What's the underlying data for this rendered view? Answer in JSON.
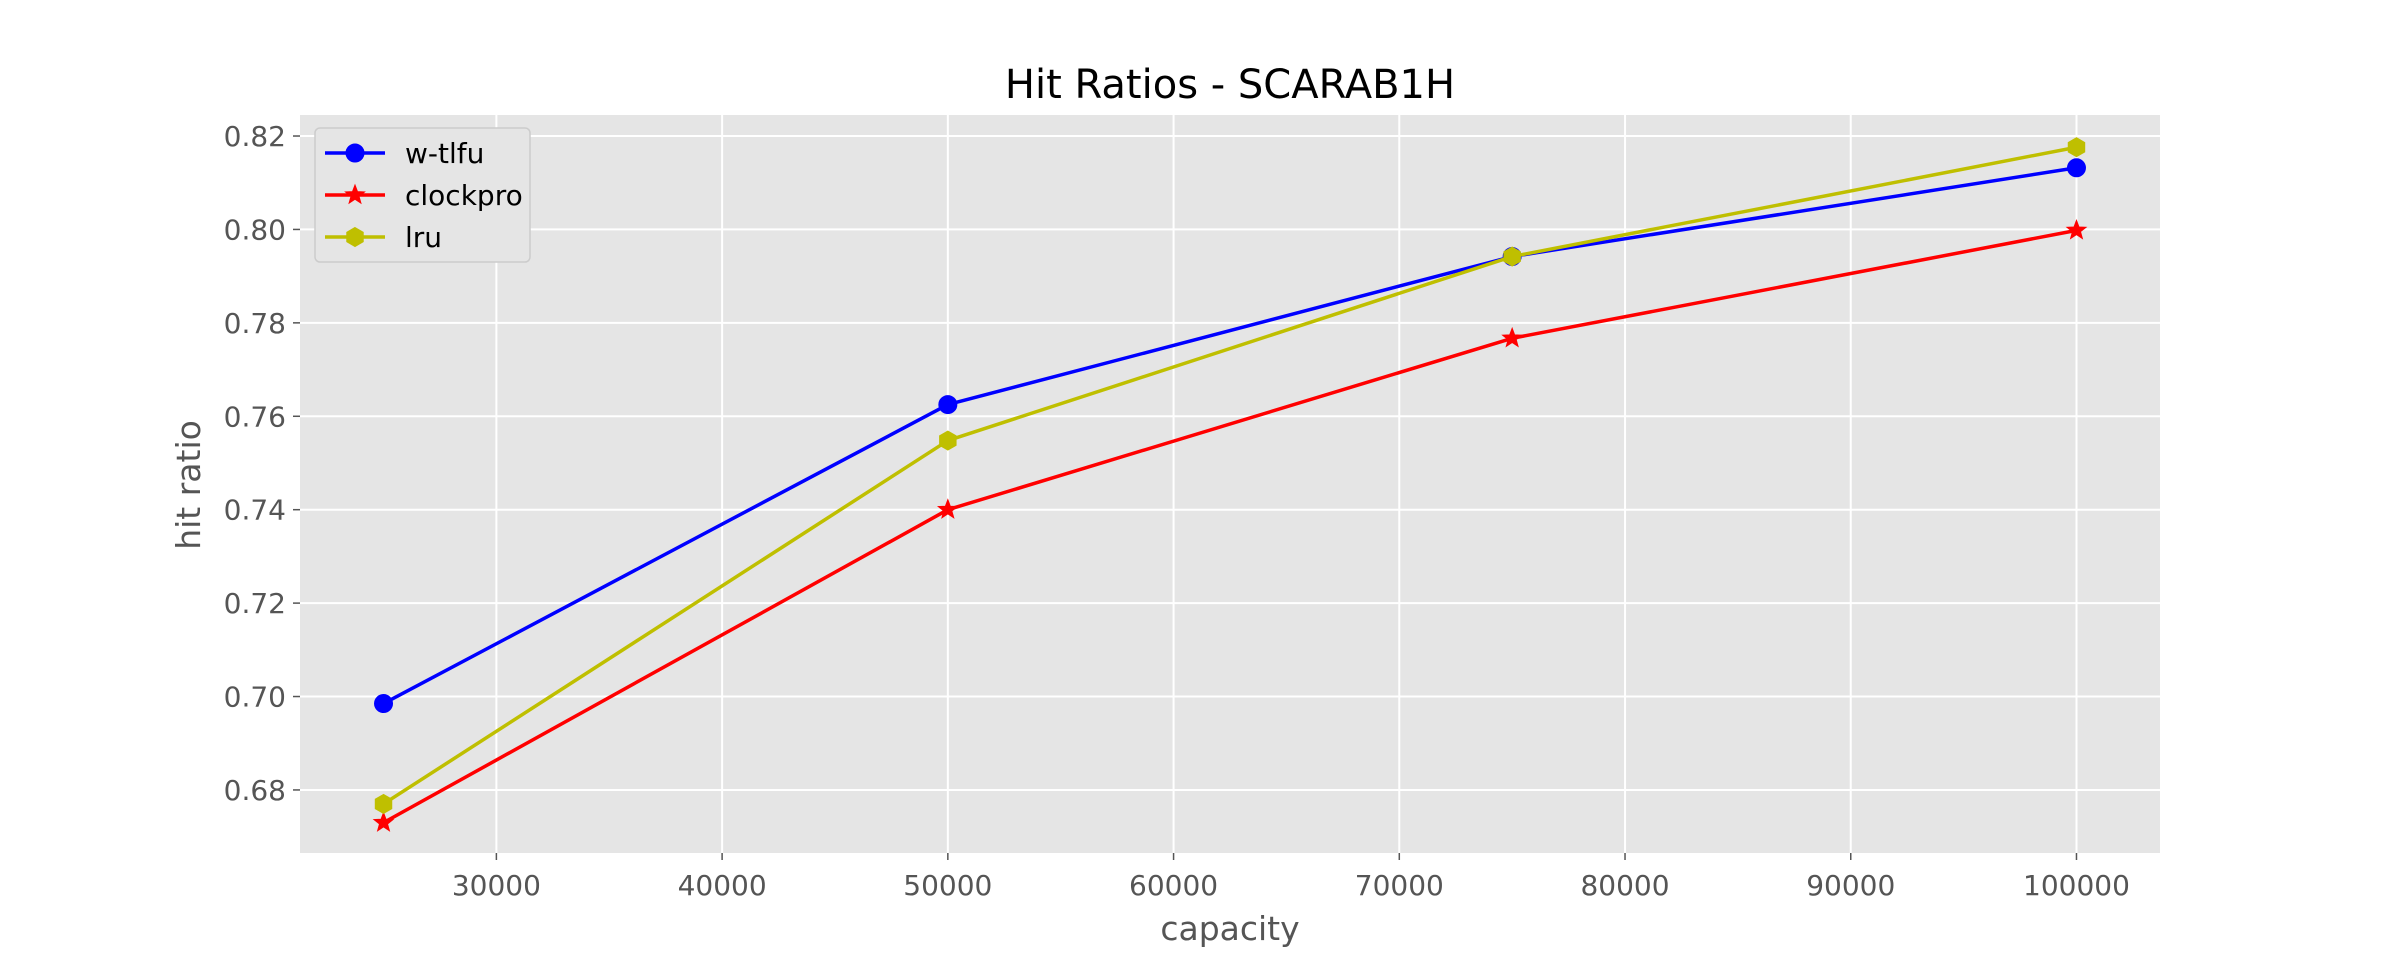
{
  "chart_data": {
    "type": "line",
    "title": "Hit Ratios - SCARAB1H",
    "xlabel": "capacity",
    "ylabel": "hit ratio",
    "x": [
      25000,
      50000,
      75000,
      100000
    ],
    "xlim": [
      21300,
      103700
    ],
    "ylim": [
      0.6665,
      0.8245
    ],
    "xticks": [
      30000,
      40000,
      50000,
      60000,
      70000,
      80000,
      90000,
      100000
    ],
    "xtick_labels": [
      "30000",
      "40000",
      "50000",
      "60000",
      "70000",
      "80000",
      "90000",
      "100000"
    ],
    "yticks": [
      0.68,
      0.7,
      0.72,
      0.74,
      0.76,
      0.78,
      0.8,
      0.82
    ],
    "ytick_labels": [
      "0.68",
      "0.70",
      "0.72",
      "0.74",
      "0.76",
      "0.78",
      "0.80",
      "0.82"
    ],
    "grid": true,
    "legend_position": "top-left",
    "series": [
      {
        "name": "w-tlfu",
        "values": [
          0.6985,
          0.7625,
          0.7942,
          0.8132
        ],
        "color": "#0000ff",
        "marker": "circle"
      },
      {
        "name": "clockpro",
        "values": [
          0.673,
          0.74,
          0.7767,
          0.7998
        ],
        "color": "#ff0000",
        "marker": "star"
      },
      {
        "name": "lru",
        "values": [
          0.677,
          0.7548,
          0.7942,
          0.8176
        ],
        "color": "#bfbf00",
        "marker": "hexagon"
      }
    ]
  }
}
